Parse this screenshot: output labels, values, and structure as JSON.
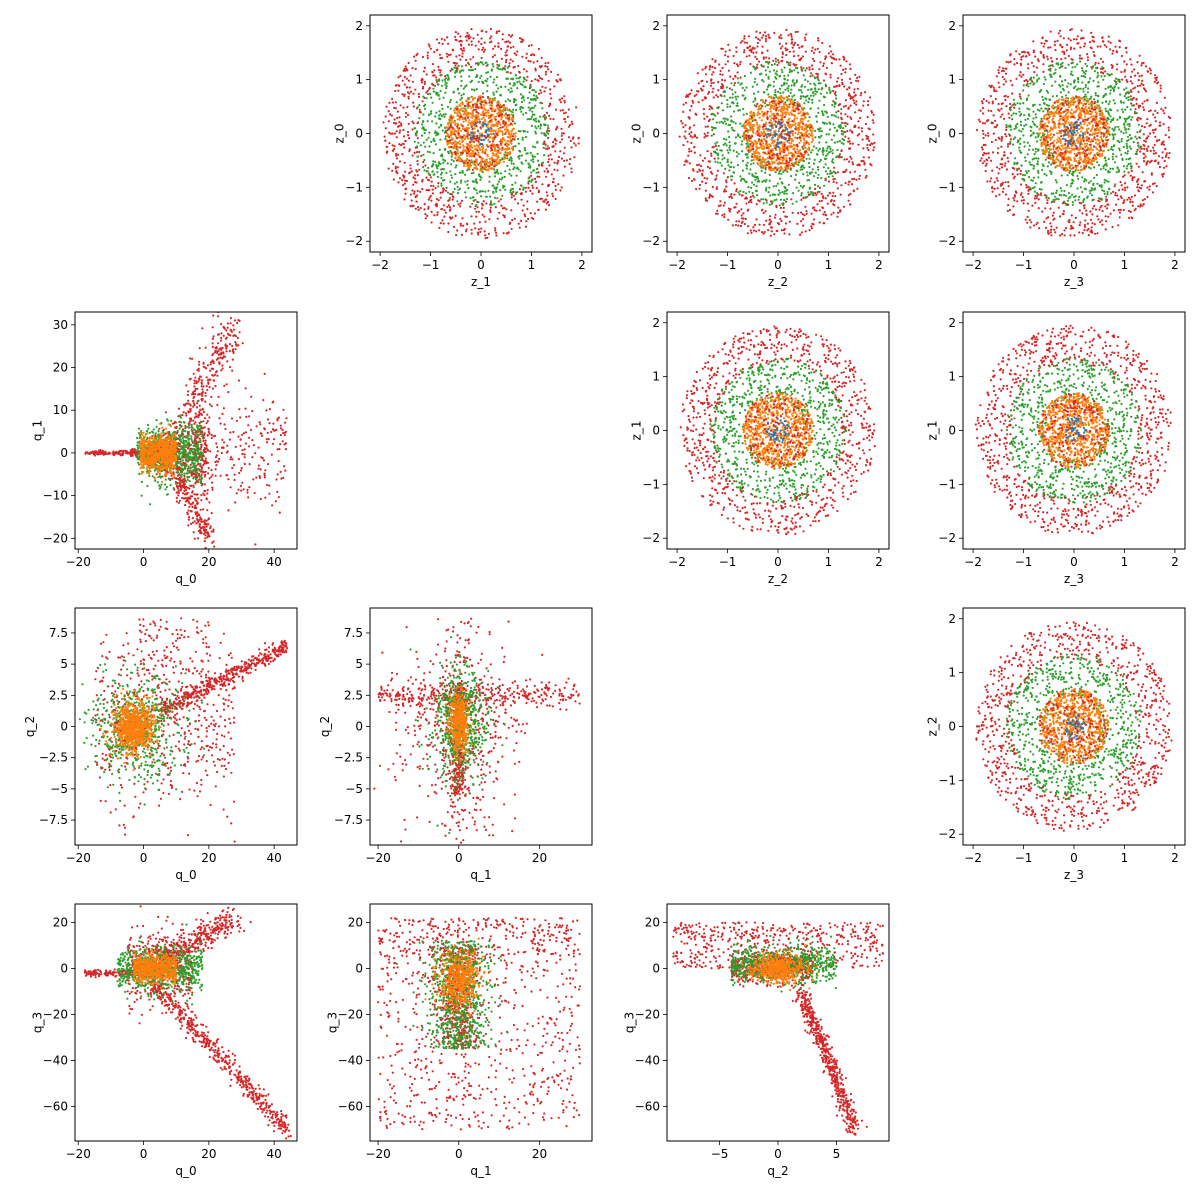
{
  "chart_data": {
    "type": "scatter",
    "colors": {
      "outer": "#d62728",
      "middle": "#2ca02c",
      "inner": "#ff7f0e",
      "center": "#1f77b4"
    },
    "marker": "dot",
    "point_count_per_panel": "approximately 3000 points per panel",
    "panels": [
      {
        "row": 0,
        "col": 1,
        "xlabel": "z_1",
        "ylabel": "z_0",
        "xlim": [
          -2.2,
          2.2
        ],
        "ylim": [
          -2.2,
          2.2
        ],
        "xticks": [
          -2,
          -1,
          0,
          1,
          2
        ],
        "yticks": [
          -2,
          -1,
          0,
          1,
          2
        ],
        "distribution": "concentric disks: red ring radius up to 2, green ring radius up to 1.3, orange disk radius up to 0.7"
      },
      {
        "row": 0,
        "col": 2,
        "xlabel": "z_2",
        "ylabel": "z_0",
        "xlim": [
          -2.2,
          2.2
        ],
        "ylim": [
          -2.2,
          2.2
        ],
        "xticks": [
          -2,
          -1,
          0,
          1,
          2
        ],
        "yticks": [
          -2,
          -1,
          0,
          1,
          2
        ],
        "distribution": "concentric disks"
      },
      {
        "row": 0,
        "col": 3,
        "xlabel": "z_3",
        "ylabel": "z_0",
        "xlim": [
          -2.2,
          2.2
        ],
        "ylim": [
          -2.2,
          2.2
        ],
        "xticks": [
          -2,
          -1,
          0,
          1,
          2
        ],
        "yticks": [
          -2,
          -1,
          0,
          1,
          2
        ],
        "distribution": "concentric disks"
      },
      {
        "row": 1,
        "col": 0,
        "xlabel": "q_0",
        "ylabel": "q_1",
        "xlim": [
          -21,
          47
        ],
        "ylim": [
          -22.5,
          33
        ],
        "xticks": [
          -20,
          0,
          20,
          40
        ],
        "yticks": [
          -20,
          -10,
          0,
          10,
          20,
          30
        ],
        "distribution": "horizontal tail from x=-18 to 0 at y=0, widening fan to the right; upper arm to (28, 30), lower arm to (20, -20), sparse cloud to x=44"
      },
      {
        "row": 1,
        "col": 2,
        "xlabel": "z_2",
        "ylabel": "z_1",
        "xlim": [
          -2.2,
          2.2
        ],
        "ylim": [
          -2.2,
          2.2
        ],
        "xticks": [
          -2,
          -1,
          0,
          1,
          2
        ],
        "yticks": [
          -2,
          -1,
          0,
          1,
          2
        ],
        "distribution": "concentric disks"
      },
      {
        "row": 1,
        "col": 3,
        "xlabel": "z_3",
        "ylabel": "z_1",
        "xlim": [
          -2.2,
          2.2
        ],
        "ylim": [
          -2.2,
          2.2
        ],
        "xticks": [
          -2,
          -1,
          0,
          1,
          2
        ],
        "yticks": [
          -2,
          -1,
          0,
          1,
          2
        ],
        "distribution": "concentric disks"
      },
      {
        "row": 2,
        "col": 0,
        "xlabel": "q_0",
        "ylabel": "q_2",
        "xlim": [
          -21,
          47
        ],
        "ylim": [
          -9.5,
          9.5
        ],
        "xticks": [
          -20,
          0,
          20,
          40
        ],
        "yticks": [
          -7.5,
          -5.0,
          -2.5,
          0.0,
          2.5,
          5.0,
          7.5
        ],
        "distribution": "blob centred near (-3, 0) with linear arm from (5, 1.5) to (44, 6.5)"
      },
      {
        "row": 2,
        "col": 1,
        "xlabel": "q_1",
        "ylabel": "q_2",
        "xlim": [
          -22,
          33
        ],
        "ylim": [
          -9.5,
          9.5
        ],
        "xticks": [
          -20,
          0,
          20
        ],
        "yticks": [
          -7.5,
          -5.0,
          -2.5,
          0.0,
          2.5,
          5.0,
          7.5
        ],
        "distribution": "vertical stem at x=0 from y=-5 to 3, horizontal band at y=2.5 from x=-20 to 30, sparse cloud"
      },
      {
        "row": 2,
        "col": 3,
        "xlabel": "z_3",
        "ylabel": "z_2",
        "xlim": [
          -2.2,
          2.2
        ],
        "ylim": [
          -2.2,
          2.2
        ],
        "xticks": [
          -2,
          -1,
          0,
          1,
          2
        ],
        "yticks": [
          -2,
          -1,
          0,
          1,
          2
        ],
        "distribution": "concentric disks"
      },
      {
        "row": 3,
        "col": 0,
        "xlabel": "q_0",
        "ylabel": "q_3",
        "xlim": [
          -21,
          47
        ],
        "ylim": [
          -75,
          28
        ],
        "xticks": [
          -20,
          0,
          20,
          40
        ],
        "yticks": [
          -60,
          -40,
          -20,
          0,
          20
        ],
        "distribution": "tail at y=-2 from x=-18 to 0, upper arm to (28, 22), lower arm to (44, -70)"
      },
      {
        "row": 3,
        "col": 1,
        "xlabel": "q_1",
        "ylabel": "q_3",
        "xlim": [
          -22,
          33
        ],
        "ylim": [
          -75,
          28
        ],
        "xticks": [
          -20,
          0,
          20
        ],
        "yticks": [
          -60,
          -40,
          -20,
          0,
          20
        ],
        "distribution": "dense column near x=0 from y=-35 to 10, wide sparse cloud from x=-20 to 30 and y=-70 to 22"
      },
      {
        "row": 3,
        "col": 2,
        "xlabel": "q_2",
        "ylabel": "q_3",
        "xlim": [
          -9.5,
          9.5
        ],
        "ylim": [
          -75,
          28
        ],
        "xticks": [
          -5,
          0,
          5
        ],
        "yticks": [
          -60,
          -40,
          -20,
          0,
          20
        ],
        "distribution": "wide horizontal band at y=0 to 20 from x=-9 to 9, arm from (2, -10) to (6.5, -70)"
      }
    ]
  }
}
